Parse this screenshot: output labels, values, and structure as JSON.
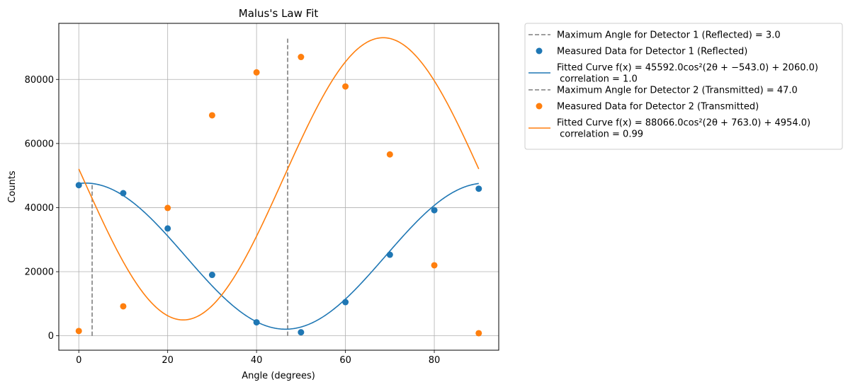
{
  "chart_data": {
    "type": "scatter",
    "title": "Malus's Law Fit",
    "xlabel": "Angle (degrees)",
    "ylabel": "Counts",
    "xlim": [
      -4.5,
      94.5
    ],
    "ylim": [
      -4500,
      97500
    ],
    "xticks": [
      0,
      20,
      40,
      60,
      80
    ],
    "yticks": [
      0,
      20000,
      40000,
      60000,
      80000
    ],
    "xtick_labels": [
      "0",
      "20",
      "40",
      "60",
      "80"
    ],
    "ytick_labels": [
      "0",
      "20000",
      "40000",
      "60000",
      "80000"
    ],
    "grid": true,
    "legend_placement": "outside right, top",
    "series": [
      {
        "name": "Measured Data for Detector 1 (Reflected)",
        "kind": "scatter",
        "color": "#1f77b4",
        "x": [
          0,
          10,
          20,
          30,
          40,
          50,
          60,
          70,
          80,
          90
        ],
        "y": [
          47000,
          44500,
          33500,
          19000,
          4200,
          1100,
          10500,
          25300,
          39200,
          45900
        ]
      },
      {
        "name": "Measured Data for Detector 2 (Transmitted)",
        "kind": "scatter",
        "color": "#ff7f0e",
        "x": [
          0,
          10,
          20,
          30,
          40,
          50,
          60,
          70,
          80,
          90
        ],
        "y": [
          1500,
          9200,
          39900,
          68800,
          82200,
          87000,
          77800,
          56600,
          22000,
          800
        ]
      },
      {
        "name": "Fitted Curve f(x) = 45592.0cos²(2θ + −543.0) + 2060.0)",
        "kind": "line",
        "color": "#1f77b4",
        "amplitude": 45592.0,
        "phase_deg": -543.0,
        "offset": 2060.0,
        "correlation": 1.0
      },
      {
        "name": "Fitted Curve f(x) = 88066.0cos²(2θ + 763.0) + 4954.0)",
        "kind": "line",
        "color": "#ff7f0e",
        "amplitude": 88066.0,
        "phase_deg": 763.0,
        "offset": 4954.0,
        "correlation": 0.99
      }
    ],
    "vlines": [
      {
        "x": 3.0,
        "ymin": 0,
        "ymax": 47652,
        "color": "#7f7f7f",
        "style": "dashed"
      },
      {
        "x": 47.0,
        "ymin": 0,
        "ymax": 93020,
        "color": "#7f7f7f",
        "style": "dashed"
      }
    ],
    "legend": [
      {
        "kind": "dash",
        "color": "#7f7f7f",
        "line1": "Maximum Angle for Detector 1 (Reflected) = 3.0",
        "line2": ""
      },
      {
        "kind": "dot",
        "color": "#1f77b4",
        "line1": "Measured Data for Detector 1 (Reflected)",
        "line2": ""
      },
      {
        "kind": "line",
        "color": "#1f77b4",
        "line1": "Fitted Curve f(x) = 45592.0cos²(2θ + −543.0) + 2060.0)",
        "line2": " correlation = 1.0"
      },
      {
        "kind": "dash",
        "color": "#7f7f7f",
        "line1": "Maximum Angle for Detector 2 (Transmitted) = 47.0",
        "line2": ""
      },
      {
        "kind": "dot",
        "color": "#ff7f0e",
        "line1": "Measured Data for Detector 2 (Transmitted)",
        "line2": ""
      },
      {
        "kind": "line",
        "color": "#ff7f0e",
        "line1": "Fitted Curve f(x) = 88066.0cos²(2θ + 763.0) + 4954.0)",
        "line2": " correlation = 0.99"
      }
    ]
  }
}
